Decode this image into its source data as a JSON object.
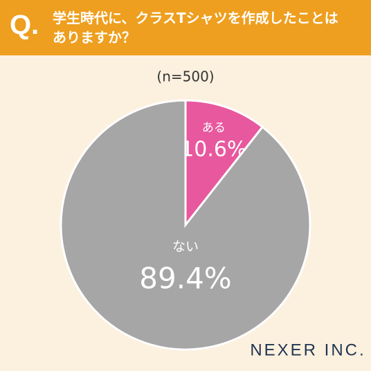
{
  "question_mark": "Q.",
  "chart_data": {
    "type": "pie",
    "title": "学生時代に、クラスTシャツを作成したことはありますか？",
    "subtitle": "(n=500)",
    "categories": [
      "ある",
      "ない"
    ],
    "values": [
      10.6,
      89.4
    ],
    "value_labels": [
      "10.6%",
      "89.4%"
    ],
    "colors": [
      "#e8589e",
      "#a6a6a6"
    ]
  },
  "logo": "NEXER INC."
}
